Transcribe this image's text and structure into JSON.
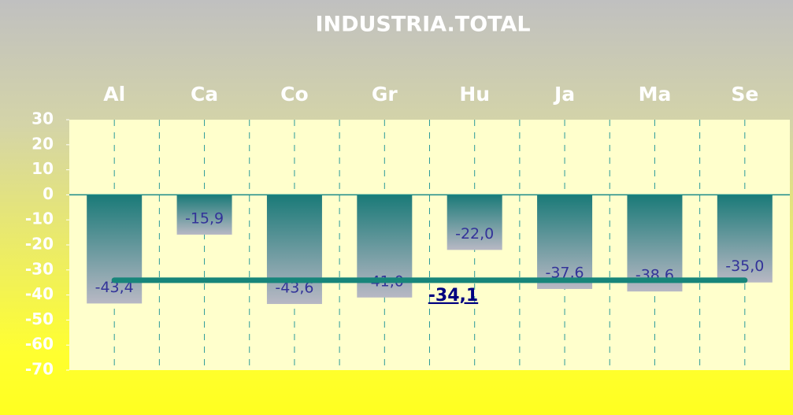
{
  "chart_data": {
    "type": "bar",
    "title": "INDUSTRIA.TOTAL",
    "categories": [
      "Al",
      "Ca",
      "Co",
      "Gr",
      "Hu",
      "Ja",
      "Ma",
      "Se"
    ],
    "values": [
      -43.4,
      -15.9,
      -43.6,
      -41.0,
      -22.0,
      -37.6,
      -38.6,
      -35.0
    ],
    "value_labels": [
      "-43,4",
      "-15,9",
      "-43,6",
      "-41,0",
      "-22,0",
      "-37,6",
      "-38,6",
      "-35,0"
    ],
    "average": {
      "value": -34.1,
      "label": "-34,1"
    },
    "color": "#1a7a78",
    "line_color": "#17857a",
    "ylim": [
      -70,
      30
    ],
    "yticks": [
      -70,
      -60,
      -50,
      -40,
      -30,
      -20,
      -10,
      0,
      10,
      20,
      30
    ]
  }
}
